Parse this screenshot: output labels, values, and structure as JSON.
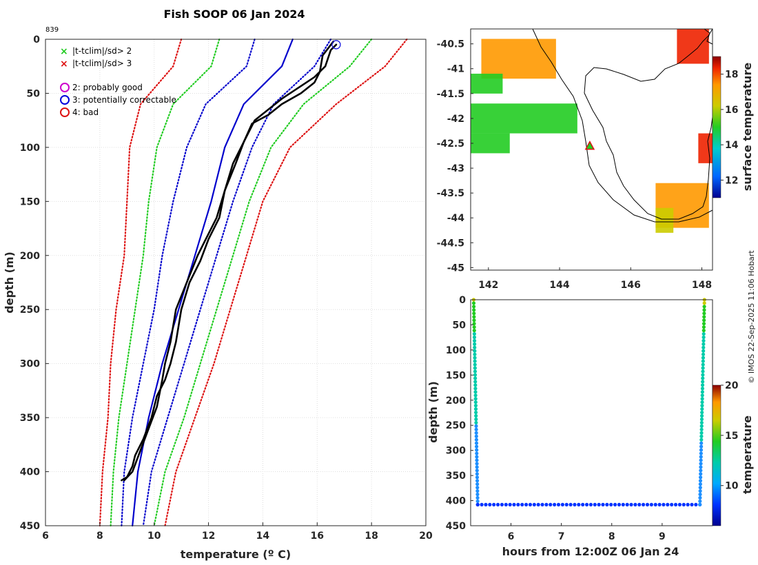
{
  "title": "Fish SOOP 06 Jan 2024",
  "profile_id": "839",
  "copyright": "© IMOS 22-Sep-2025 11:06 Hobart",
  "legend": {
    "flag_sd2": "|t-tclim|/sd> 2",
    "flag_sd3": "|t-tclim|/sd> 3",
    "qc2": "2: probably good",
    "qc3": "3: potentially correctable",
    "qc4": "4: bad"
  },
  "colors": {
    "sd2": "#22cc22",
    "sd3": "#dd1111",
    "clim": "#0000cc",
    "probe": "#000000",
    "qc2": "#cc00cc",
    "qc3": "#0000dd",
    "qc4": "#dd1111"
  },
  "chart_data": [
    {
      "type": "line",
      "name": "profile",
      "xlabel": "temperature (º C)",
      "ylabel": "depth (m)",
      "xlim": [
        6,
        20
      ],
      "ylim": [
        450,
        0
      ],
      "xticks": [
        "6",
        "8",
        "10",
        "12",
        "14",
        "16",
        "18",
        "20"
      ],
      "yticks": [
        "0",
        "50",
        "100",
        "150",
        "200",
        "250",
        "300",
        "350",
        "400",
        "450"
      ],
      "grid": true,
      "series": [
        {
          "name": "clim -3sd",
          "style": "dotted",
          "color": "sd3",
          "x": [
            11.0,
            10.7,
            9.5,
            9.1,
            9.0,
            8.9,
            8.6,
            8.4,
            8.3,
            8.1,
            8.0
          ],
          "y": [
            0,
            25,
            60,
            100,
            150,
            200,
            250,
            300,
            350,
            400,
            450
          ]
        },
        {
          "name": "clim -2sd",
          "style": "dotted",
          "color": "sd2",
          "x": [
            12.4,
            12.1,
            10.7,
            10.1,
            9.8,
            9.6,
            9.3,
            9.0,
            8.7,
            8.5,
            8.4
          ],
          "y": [
            0,
            25,
            60,
            100,
            150,
            200,
            250,
            300,
            350,
            400,
            450
          ]
        },
        {
          "name": "clim -1sd",
          "style": "dotted",
          "color": "clim",
          "x": [
            13.7,
            13.4,
            11.9,
            11.2,
            10.7,
            10.3,
            10.0,
            9.6,
            9.2,
            8.9,
            8.8
          ],
          "y": [
            0,
            25,
            60,
            100,
            150,
            200,
            250,
            300,
            350,
            400,
            450
          ]
        },
        {
          "name": "clim mean",
          "style": "solid",
          "color": "clim",
          "x": [
            15.1,
            14.7,
            13.3,
            12.6,
            12.1,
            11.5,
            10.9,
            10.3,
            9.8,
            9.4,
            9.2
          ],
          "y": [
            0,
            25,
            60,
            100,
            150,
            200,
            250,
            300,
            350,
            400,
            450
          ]
        },
        {
          "name": "clim +1sd",
          "style": "dotted",
          "color": "clim",
          "x": [
            16.5,
            15.9,
            14.4,
            13.6,
            12.9,
            12.3,
            11.7,
            11.1,
            10.5,
            9.9,
            9.6
          ],
          "y": [
            0,
            25,
            60,
            100,
            150,
            200,
            250,
            300,
            350,
            400,
            450
          ]
        },
        {
          "name": "clim +2sd",
          "style": "dotted",
          "color": "sd2",
          "x": [
            18.0,
            17.2,
            15.5,
            14.3,
            13.5,
            12.9,
            12.3,
            11.7,
            11.1,
            10.4,
            10.0
          ],
          "y": [
            0,
            25,
            60,
            100,
            150,
            200,
            250,
            300,
            350,
            400,
            450
          ]
        },
        {
          "name": "clim +3sd",
          "style": "dotted",
          "color": "sd3",
          "x": [
            19.3,
            18.5,
            16.7,
            15.0,
            14.0,
            13.4,
            12.8,
            12.2,
            11.5,
            10.8,
            10.4
          ],
          "y": [
            0,
            25,
            60,
            100,
            150,
            200,
            250,
            300,
            350,
            400,
            450
          ]
        },
        {
          "name": "descent",
          "style": "solid",
          "color": "probe",
          "x": [
            16.6,
            16.2,
            16.1,
            15.9,
            15.4,
            14.7,
            14.2,
            13.6,
            13.3,
            13.0,
            12.6,
            12.4,
            12.0,
            11.7,
            11.3,
            11.0,
            10.8,
            10.6,
            10.4,
            10.1,
            9.9,
            9.6,
            9.3,
            9.2,
            9.0,
            8.8
          ],
          "y": [
            2,
            15,
            30,
            40,
            50,
            60,
            70,
            78,
            95,
            115,
            140,
            165,
            185,
            205,
            225,
            250,
            280,
            300,
            315,
            330,
            350,
            370,
            385,
            395,
            405,
            408
          ]
        },
        {
          "name": "ascent",
          "style": "solid",
          "color": "probe",
          "x": [
            8.9,
            9.2,
            9.5,
            9.8,
            10.1,
            10.3,
            10.4,
            10.6,
            10.8,
            11.2,
            11.6,
            11.9,
            12.3,
            12.6,
            12.9,
            13.3,
            13.7,
            14.2,
            14.7,
            15.3,
            15.9,
            16.3,
            16.5,
            16.7
          ],
          "y": [
            408,
            400,
            380,
            360,
            340,
            315,
            300,
            280,
            250,
            225,
            200,
            185,
            165,
            140,
            115,
            95,
            75,
            65,
            55,
            45,
            35,
            25,
            10,
            5
          ]
        }
      ],
      "start_marker": {
        "x": 16.7,
        "y": 5,
        "label": "3: potentially correctable"
      }
    },
    {
      "type": "heatmap",
      "name": "map",
      "xlim": [
        141.5,
        148.3
      ],
      "ylim": [
        -45.05,
        -40.2
      ],
      "xticks": [
        "142",
        "144",
        "146",
        "148"
      ],
      "yticks": [
        "-40.5",
        "-41",
        "-41.5",
        "-42",
        "-42.5",
        "-43",
        "-43.5",
        "-44",
        "-44.5",
        "-45"
      ],
      "colorbar_label": "surface temperature",
      "colorbar_range": [
        11,
        19
      ],
      "colorbar_ticks": [
        "12",
        "14",
        "16",
        "18"
      ],
      "marker": {
        "lon": 144.85,
        "lat": -42.55,
        "color": "#22cc22",
        "shape": "triangle"
      },
      "cells": [
        {
          "lon0": 141.8,
          "lon1": 143.9,
          "lat0": -41.2,
          "lat1": -40.4,
          "value": 17.6
        },
        {
          "lon0": 141.5,
          "lon1": 142.4,
          "lat0": -41.5,
          "lat1": -41.1,
          "value": 16.0
        },
        {
          "lon0": 141.5,
          "lon1": 144.5,
          "lat0": -42.3,
          "lat1": -41.7,
          "value": 16.4
        },
        {
          "lon0": 141.5,
          "lon1": 142.6,
          "lat0": -42.7,
          "lat1": -42.3,
          "value": 15.6
        },
        {
          "lon0": 147.3,
          "lon1": 148.2,
          "lat0": -40.9,
          "lat1": -40.2,
          "value": 19.3
        },
        {
          "lon0": 147.9,
          "lon1": 148.3,
          "lat0": -42.9,
          "lat1": -42.3,
          "value": 19.0
        },
        {
          "lon0": 146.7,
          "lon1": 148.2,
          "lat0": -44.2,
          "lat1": -43.3,
          "value": 18.0
        },
        {
          "lon0": 146.7,
          "lon1": 147.2,
          "lat0": -44.3,
          "lat1": -43.8,
          "value": 16.5
        }
      ]
    },
    {
      "type": "scatter",
      "name": "timeseries",
      "xlabel": "hours from 12:00Z 06 Jan 24",
      "ylabel": "depth (m)",
      "xlim": [
        5.2,
        10.0
      ],
      "ylim": [
        450,
        0
      ],
      "xticks": [
        "6",
        "7",
        "8",
        "9"
      ],
      "yticks": [
        "0",
        "50",
        "100",
        "150",
        "200",
        "250",
        "300",
        "350",
        "400",
        "450"
      ],
      "colorbar_label": "temperature",
      "colorbar_range": [
        6,
        20
      ],
      "colorbar_ticks": [
        "10",
        "15",
        "20"
      ],
      "descent": {
        "t0": 5.26,
        "t1": 5.34,
        "depth0": 0,
        "depth1": 408
      },
      "bottom": {
        "t0": 5.34,
        "t1": 9.75,
        "depth": 408
      },
      "ascent": {
        "t0": 9.75,
        "t1": 9.84,
        "depth0": 408,
        "depth1": 0
      }
    }
  ]
}
